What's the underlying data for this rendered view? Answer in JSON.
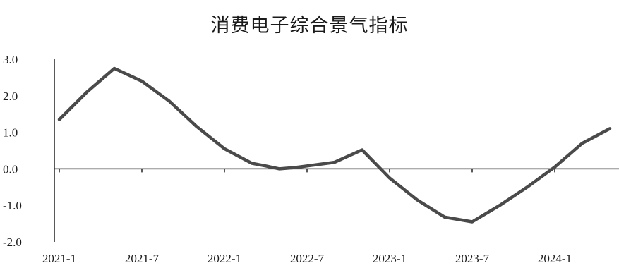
{
  "chart_data": {
    "type": "line",
    "title": "消费电子综合景气指标",
    "xlabel": "",
    "ylabel": "",
    "ylim": [
      -2.0,
      3.0
    ],
    "yticks": [
      "3.0",
      "2.0",
      "1.0",
      "0.0",
      "-1.0",
      "-2.0"
    ],
    "ytick_values": [
      3.0,
      2.0,
      1.0,
      0.0,
      -1.0,
      -2.0
    ],
    "xticks": [
      "2021-1",
      "2021-7",
      "2022-1",
      "2022-7",
      "2023-1",
      "2023-7",
      "2024-1"
    ],
    "xtick_positions": [
      0,
      6,
      12,
      18,
      24,
      30,
      36
    ],
    "grid": false,
    "colors": {
      "line": "#4a4a4a",
      "axis": "#222222"
    },
    "series": [
      {
        "name": "",
        "x": [
          0,
          2,
          4,
          6,
          8,
          10,
          12,
          14,
          15,
          16,
          17,
          18,
          20,
          22,
          24,
          26,
          28,
          30,
          32,
          34,
          36,
          38,
          40
        ],
        "values": [
          1.35,
          2.1,
          2.75,
          2.4,
          1.85,
          1.15,
          0.55,
          0.15,
          0.08,
          0.0,
          0.03,
          0.08,
          0.18,
          0.52,
          -0.25,
          -0.85,
          -1.32,
          -1.45,
          -1.0,
          -0.5,
          0.05,
          0.7,
          1.1
        ]
      }
    ]
  }
}
